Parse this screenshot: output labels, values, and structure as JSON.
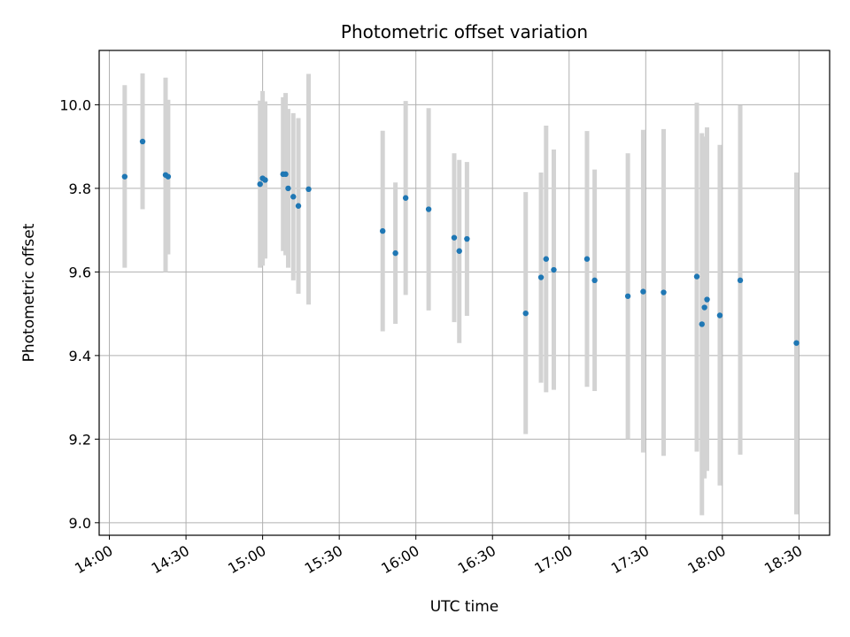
{
  "chart_data": {
    "type": "scatter",
    "title": "Photometric offset variation",
    "xlabel": "UTC time",
    "ylabel": "Photometric offset",
    "x_tick_labels": [
      "14:00",
      "14:30",
      "15:00",
      "15:30",
      "16:00",
      "16:30",
      "17:00",
      "17:30",
      "18:00",
      "18:30"
    ],
    "x_tick_minutes": [
      0,
      30,
      60,
      90,
      120,
      150,
      180,
      210,
      240,
      270
    ],
    "y_tick_labels": [
      "9.0",
      "9.2",
      "9.4",
      "9.6",
      "9.8",
      "10.0"
    ],
    "y_tick_values": [
      9.0,
      9.2,
      9.4,
      9.6,
      9.8,
      10.0
    ],
    "xlim": [
      "13:56",
      "18:42"
    ],
    "ylim": [
      8.97,
      10.13
    ],
    "grid": true,
    "marker_color": "#1f77b4",
    "errorbar_color": "#d3d3d3",
    "points": [
      {
        "time": "14:06",
        "y": 9.828,
        "lo": 9.61,
        "hi": 10.047
      },
      {
        "time": "14:13",
        "y": 9.912,
        "lo": 9.75,
        "hi": 10.075
      },
      {
        "time": "14:22",
        "y": 9.832,
        "lo": 9.6,
        "hi": 10.065
      },
      {
        "time": "14:23",
        "y": 9.828,
        "lo": 9.642,
        "hi": 10.012
      },
      {
        "time": "14:59",
        "y": 9.81,
        "lo": 9.61,
        "hi": 10.01
      },
      {
        "time": "15:00",
        "y": 9.824,
        "lo": 9.615,
        "hi": 10.033
      },
      {
        "time": "15:01",
        "y": 9.82,
        "lo": 9.632,
        "hi": 10.008
      },
      {
        "time": "15:08",
        "y": 9.834,
        "lo": 9.65,
        "hi": 10.018
      },
      {
        "time": "15:09",
        "y": 9.834,
        "lo": 9.64,
        "hi": 10.028
      },
      {
        "time": "15:10",
        "y": 9.8,
        "lo": 9.61,
        "hi": 9.99
      },
      {
        "time": "15:12",
        "y": 9.78,
        "lo": 9.58,
        "hi": 9.98
      },
      {
        "time": "15:14",
        "y": 9.758,
        "lo": 9.548,
        "hi": 9.968
      },
      {
        "time": "15:18",
        "y": 9.798,
        "lo": 9.522,
        "hi": 10.074
      },
      {
        "time": "15:47",
        "y": 9.698,
        "lo": 9.458,
        "hi": 9.938
      },
      {
        "time": "15:52",
        "y": 9.645,
        "lo": 9.476,
        "hi": 9.814
      },
      {
        "time": "15:56",
        "y": 9.777,
        "lo": 9.545,
        "hi": 10.009
      },
      {
        "time": "16:05",
        "y": 9.75,
        "lo": 9.508,
        "hi": 9.992
      },
      {
        "time": "16:15",
        "y": 9.682,
        "lo": 9.48,
        "hi": 9.884
      },
      {
        "time": "16:17",
        "y": 9.65,
        "lo": 9.43,
        "hi": 9.868
      },
      {
        "time": "16:20",
        "y": 9.679,
        "lo": 9.495,
        "hi": 9.863
      },
      {
        "time": "16:43",
        "y": 9.501,
        "lo": 9.212,
        "hi": 9.791
      },
      {
        "time": "16:49",
        "y": 9.587,
        "lo": 9.335,
        "hi": 9.838
      },
      {
        "time": "16:51",
        "y": 9.631,
        "lo": 9.312,
        "hi": 9.95
      },
      {
        "time": "16:54",
        "y": 9.605,
        "lo": 9.318,
        "hi": 9.893
      },
      {
        "time": "17:07",
        "y": 9.631,
        "lo": 9.325,
        "hi": 9.937
      },
      {
        "time": "17:10",
        "y": 9.58,
        "lo": 9.315,
        "hi": 9.845
      },
      {
        "time": "17:23",
        "y": 9.542,
        "lo": 9.2,
        "hi": 9.884
      },
      {
        "time": "17:29",
        "y": 9.553,
        "lo": 9.168,
        "hi": 9.94
      },
      {
        "time": "17:37",
        "y": 9.551,
        "lo": 9.16,
        "hi": 9.942
      },
      {
        "time": "17:50",
        "y": 9.589,
        "lo": 9.17,
        "hi": 10.005
      },
      {
        "time": "17:52",
        "y": 9.475,
        "lo": 9.018,
        "hi": 9.932
      },
      {
        "time": "17:53",
        "y": 9.515,
        "lo": 9.106,
        "hi": 9.924
      },
      {
        "time": "17:54",
        "y": 9.534,
        "lo": 9.124,
        "hi": 9.946
      },
      {
        "time": "17:59",
        "y": 9.496,
        "lo": 9.089,
        "hi": 9.904
      },
      {
        "time": "18:07",
        "y": 9.58,
        "lo": 9.163,
        "hi": 9.999
      },
      {
        "time": "18:29",
        "y": 9.43,
        "lo": 9.02,
        "hi": 9.838
      }
    ]
  }
}
